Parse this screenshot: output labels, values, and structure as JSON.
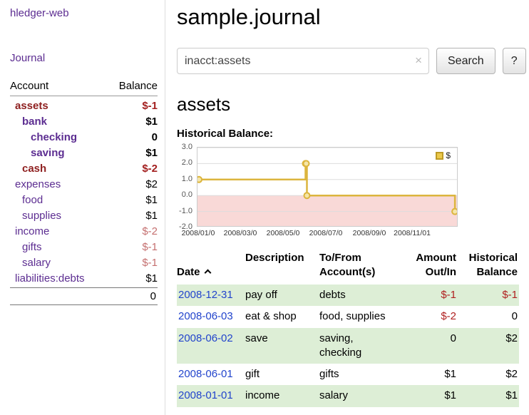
{
  "sidebar": {
    "brand": "hledger-web",
    "nav_journal": "Journal",
    "accounts": {
      "headers": {
        "account": "Account",
        "balance": "Balance"
      },
      "rows": [
        {
          "name": "assets",
          "balance": "$-1"
        },
        {
          "name": "bank",
          "balance": "$1"
        },
        {
          "name": "checking",
          "balance": "0"
        },
        {
          "name": "saving",
          "balance": "$1"
        },
        {
          "name": "cash",
          "balance": "$-2"
        },
        {
          "name": "expenses",
          "balance": "$2"
        },
        {
          "name": "food",
          "balance": "$1"
        },
        {
          "name": "supplies",
          "balance": "$1"
        },
        {
          "name": "income",
          "balance": "$-2"
        },
        {
          "name": "gifts",
          "balance": "$-1"
        },
        {
          "name": "salary",
          "balance": "$-1"
        },
        {
          "name": "liabilities:debts",
          "balance": "$1"
        }
      ],
      "total": "0"
    }
  },
  "main": {
    "title": "sample.journal",
    "search": {
      "value": "inacct:assets",
      "clear_icon": "×",
      "search_button": "Search",
      "help_button": "?"
    },
    "account_heading": "assets",
    "chart_label": "Historical Balance:",
    "register": {
      "headers": {
        "date": "Date",
        "description": "Description",
        "to_from": "To/From\nAccount(s)",
        "amount": "Amount\nOut/In",
        "balance": "Historical\nBalance"
      },
      "rows": [
        {
          "date": "2008-12-31",
          "description": "pay off",
          "to_from": "debts",
          "amount": "$-1",
          "balance": "$-1"
        },
        {
          "date": "2008-06-03",
          "description": "eat & shop",
          "to_from": "food, supplies",
          "amount": "$-2",
          "balance": "0"
        },
        {
          "date": "2008-06-02",
          "description": "save",
          "to_from": "saving,\nchecking",
          "amount": "0",
          "balance": "$2"
        },
        {
          "date": "2008-06-01",
          "description": "gift",
          "to_from": "gifts",
          "amount": "$1",
          "balance": "$2"
        },
        {
          "date": "2008-01-01",
          "description": "income",
          "to_from": "salary",
          "amount": "$1",
          "balance": "$1"
        }
      ]
    }
  },
  "chart_data": {
    "type": "line",
    "title": "Historical Balance:",
    "legend": {
      "position": "top-right",
      "label": "$"
    },
    "ylim": [
      -2.0,
      3.0
    ],
    "ytick_labels": [
      "3.0",
      "2.0",
      "1.0",
      "0.0",
      "-1.0",
      "-2.0"
    ],
    "x_domain": [
      "2007-12-30",
      "2009-01-05"
    ],
    "xticks": [
      {
        "date": "2008-01-01",
        "label": "2008/01/0"
      },
      {
        "date": "2008-03-01",
        "label": "2008/03/0"
      },
      {
        "date": "2008-05-01",
        "label": "2008/05/0"
      },
      {
        "date": "2008-07-01",
        "label": "2008/07/0"
      },
      {
        "date": "2008-09-01",
        "label": "2008/09/0"
      },
      {
        "date": "2008-11-01",
        "label": "2008/11/01"
      }
    ],
    "series": [
      {
        "name": "$",
        "interpolation": "step-after",
        "points": [
          [
            "2008-01-01",
            1
          ],
          [
            "2008-06-01",
            2
          ],
          [
            "2008-06-02",
            2
          ],
          [
            "2008-06-03",
            0
          ],
          [
            "2008-12-31",
            -1
          ]
        ]
      }
    ],
    "grid": true,
    "colors": {
      "line": "#dcb53e",
      "marker_fill": "#f5e6a8",
      "negative_region": "#f9d9d7",
      "grid": "#dddddd"
    }
  },
  "colors": {
    "link_purple": "#5c2d91",
    "link_blue": "#2244cc",
    "negative_dark": "#a32020",
    "negative_soft": "#c57070",
    "row_green": "#ddeed6"
  }
}
